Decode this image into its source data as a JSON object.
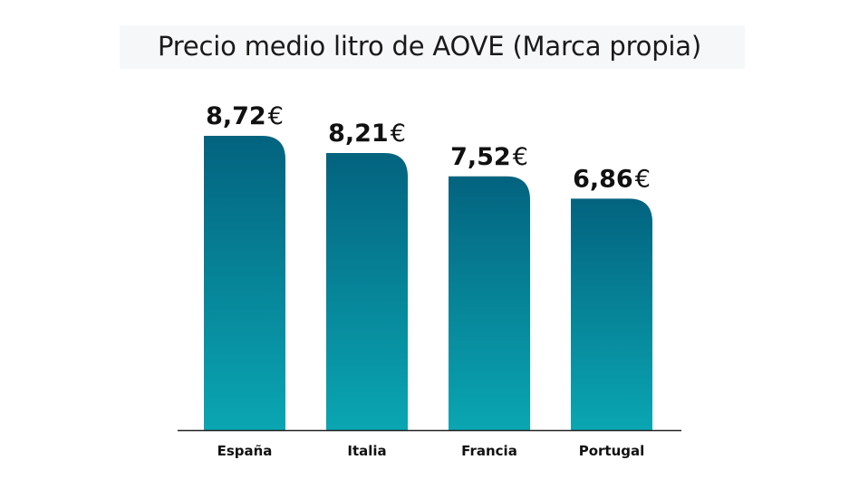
{
  "chart_data": {
    "type": "bar",
    "title": "Precio medio litro de AOVE (Marca propia)",
    "categories": [
      "España",
      "Italia",
      "Francia",
      "Portugal"
    ],
    "values": [
      8.72,
      8.21,
      7.52,
      6.86
    ],
    "value_labels": [
      "8,72",
      "8,21",
      "7,52",
      "6,86"
    ],
    "currency_symbol": "€",
    "xlabel": "",
    "ylabel": "",
    "ylim": [
      0,
      9.66
    ],
    "grid": false,
    "legend": "none",
    "colors": {
      "bar_top": "#03637f",
      "bar_bottom": "#0aa6b2",
      "axis": "#222222",
      "title_band": "#f6f7f9"
    }
  }
}
